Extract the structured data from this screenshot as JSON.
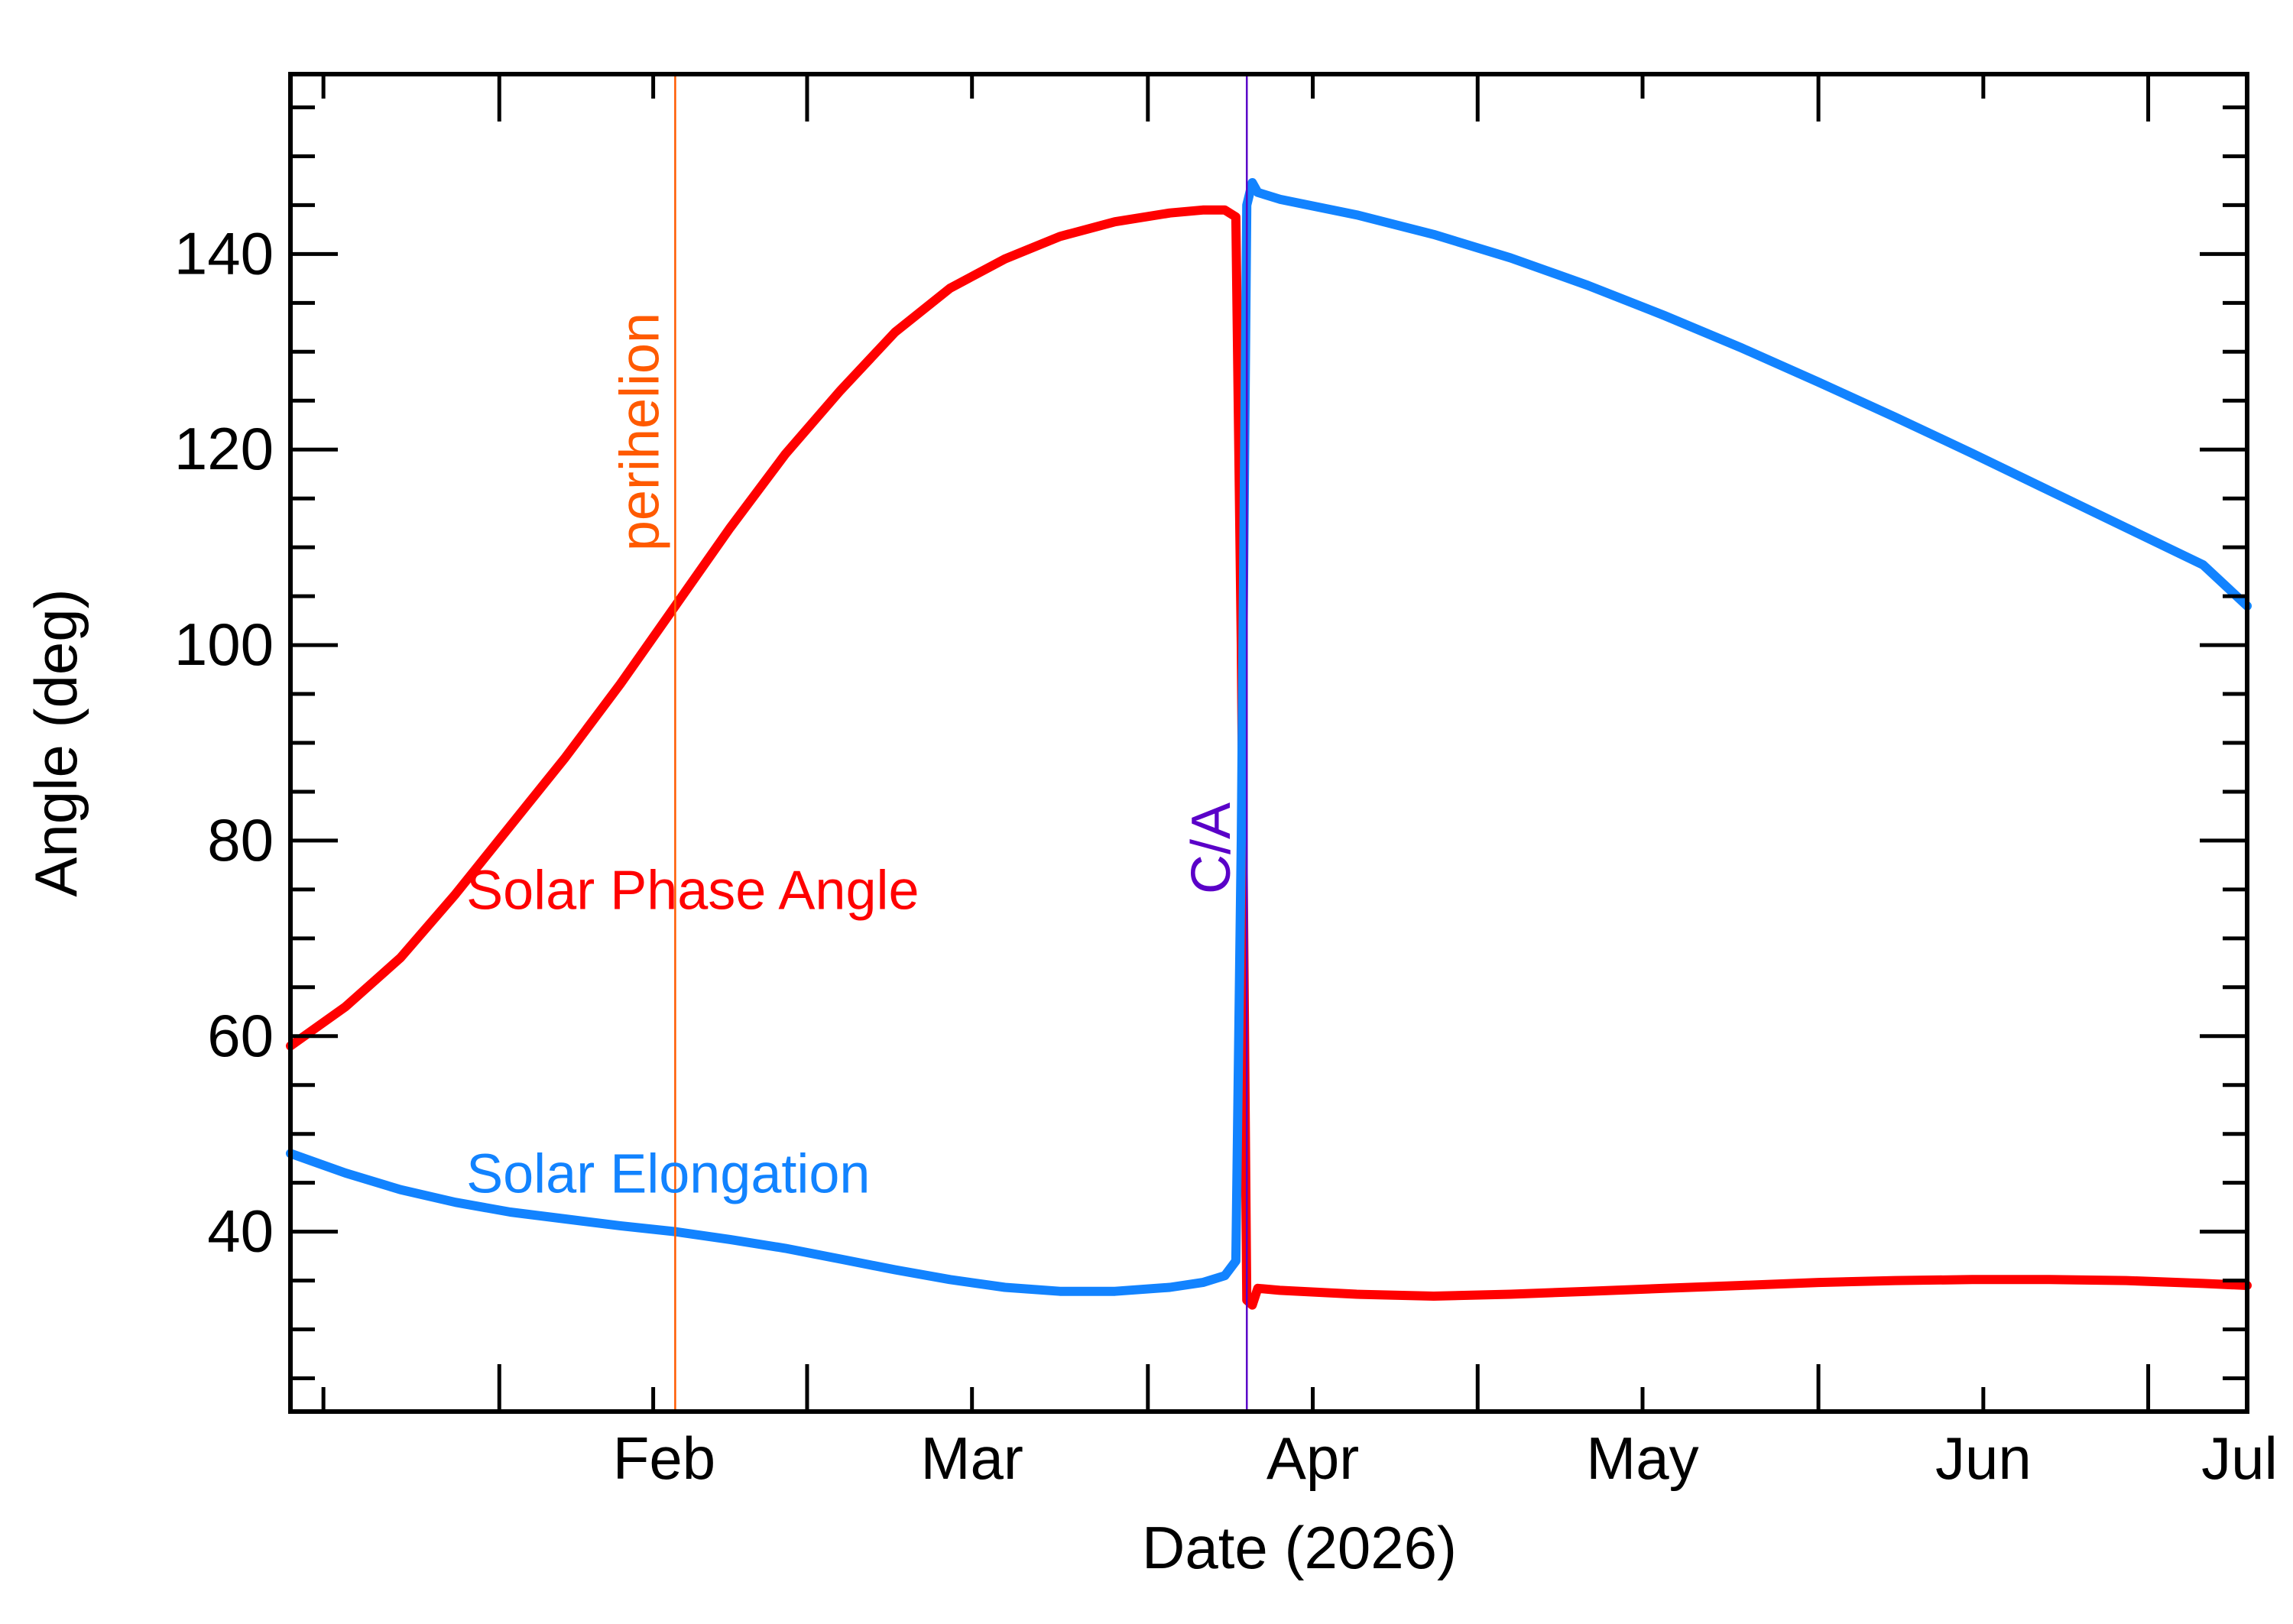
{
  "chart_data": {
    "type": "line",
    "xlabel": "Date (2026)",
    "ylabel": "Angle (deg)",
    "xlim": [
      "2026-01-13",
      "2026-07-10"
    ],
    "ylim": [
      21.6,
      158.4
    ],
    "x_ticks": [
      {
        "date": "2026-02-01",
        "label": "Feb"
      },
      {
        "date": "2026-03-01",
        "label": "Mar"
      },
      {
        "date": "2026-04-01",
        "label": "Apr"
      },
      {
        "date": "2026-05-01",
        "label": "May"
      },
      {
        "date": "2026-06-01",
        "label": "Jun"
      },
      {
        "date": "2026-07-01",
        "label": "Jul"
      }
    ],
    "y_ticks": [
      40,
      60,
      80,
      100,
      120,
      140
    ],
    "y_minor_step": 5,
    "grid": false,
    "markers": [
      {
        "name": "perihelion",
        "date": "2026-02-17",
        "color": "#ff5a00"
      },
      {
        "name": "C/A",
        "date": "2026-04-10",
        "color": "#5a00c8"
      }
    ],
    "series": [
      {
        "name": "Solar Phase Angle",
        "color": "#ff0000",
        "label_anchor": {
          "date": "2026-01-29",
          "value": 73
        },
        "points": [
          [
            "2026-01-13",
            59
          ],
          [
            "2026-01-18",
            63
          ],
          [
            "2026-01-23",
            68
          ],
          [
            "2026-01-28",
            74.5
          ],
          [
            "2026-02-02",
            81.5
          ],
          [
            "2026-02-07",
            88.5
          ],
          [
            "2026-02-12",
            96
          ],
          [
            "2026-02-17",
            104
          ],
          [
            "2026-02-22",
            112
          ],
          [
            "2026-02-27",
            119.5
          ],
          [
            "2026-03-04",
            126
          ],
          [
            "2026-03-09",
            132
          ],
          [
            "2026-03-14",
            136.5
          ],
          [
            "2026-03-19",
            139.5
          ],
          [
            "2026-03-24",
            141.8
          ],
          [
            "2026-03-29",
            143.3
          ],
          [
            "2026-04-03",
            144.2
          ],
          [
            "2026-04-06",
            144.5
          ],
          [
            "2026-04-08",
            144.5
          ],
          [
            "2026-04-09",
            143.8
          ],
          [
            "2026-04-09T12:00",
            100
          ],
          [
            "2026-04-10",
            33
          ],
          [
            "2026-04-10T12:00",
            32.5
          ],
          [
            "2026-04-11",
            34.2
          ],
          [
            "2026-04-13",
            34
          ],
          [
            "2026-04-20",
            33.6
          ],
          [
            "2026-04-27",
            33.4
          ],
          [
            "2026-05-04",
            33.6
          ],
          [
            "2026-05-11",
            33.9
          ],
          [
            "2026-05-18",
            34.2
          ],
          [
            "2026-05-25",
            34.5
          ],
          [
            "2026-06-01",
            34.8
          ],
          [
            "2026-06-08",
            35
          ],
          [
            "2026-06-15",
            35.1
          ],
          [
            "2026-06-22",
            35.1
          ],
          [
            "2026-06-29",
            35
          ],
          [
            "2026-07-06",
            34.7
          ],
          [
            "2026-07-10",
            34.5
          ]
        ]
      },
      {
        "name": "Solar Elongation",
        "color": "#1283ff",
        "label_anchor": {
          "date": "2026-01-29",
          "value": 44
        },
        "points": [
          [
            "2026-01-13",
            48
          ],
          [
            "2026-01-18",
            46
          ],
          [
            "2026-01-23",
            44.3
          ],
          [
            "2026-01-28",
            43
          ],
          [
            "2026-02-02",
            42
          ],
          [
            "2026-02-07",
            41.3
          ],
          [
            "2026-02-12",
            40.6
          ],
          [
            "2026-02-17",
            40
          ],
          [
            "2026-02-22",
            39.2
          ],
          [
            "2026-02-27",
            38.3
          ],
          [
            "2026-03-04",
            37.2
          ],
          [
            "2026-03-09",
            36.1
          ],
          [
            "2026-03-14",
            35.1
          ],
          [
            "2026-03-19",
            34.3
          ],
          [
            "2026-03-24",
            33.9
          ],
          [
            "2026-03-29",
            33.9
          ],
          [
            "2026-04-03",
            34.3
          ],
          [
            "2026-04-06",
            34.8
          ],
          [
            "2026-04-08",
            35.5
          ],
          [
            "2026-04-09",
            37
          ],
          [
            "2026-04-09T12:00",
            80
          ],
          [
            "2026-04-10",
            145
          ],
          [
            "2026-04-10T12:00",
            147.3
          ],
          [
            "2026-04-11",
            146.3
          ],
          [
            "2026-04-13",
            145.6
          ],
          [
            "2026-04-20",
            144
          ],
          [
            "2026-04-27",
            142
          ],
          [
            "2026-05-04",
            139.6
          ],
          [
            "2026-05-11",
            136.8
          ],
          [
            "2026-05-18",
            133.7
          ],
          [
            "2026-05-25",
            130.4
          ],
          [
            "2026-06-01",
            126.9
          ],
          [
            "2026-06-08",
            123.3
          ],
          [
            "2026-06-15",
            119.6
          ],
          [
            "2026-06-22",
            115.8
          ],
          [
            "2026-06-29",
            112
          ],
          [
            "2026-07-06",
            108.2
          ],
          [
            "2026-07-10",
            104
          ]
        ]
      }
    ]
  }
}
